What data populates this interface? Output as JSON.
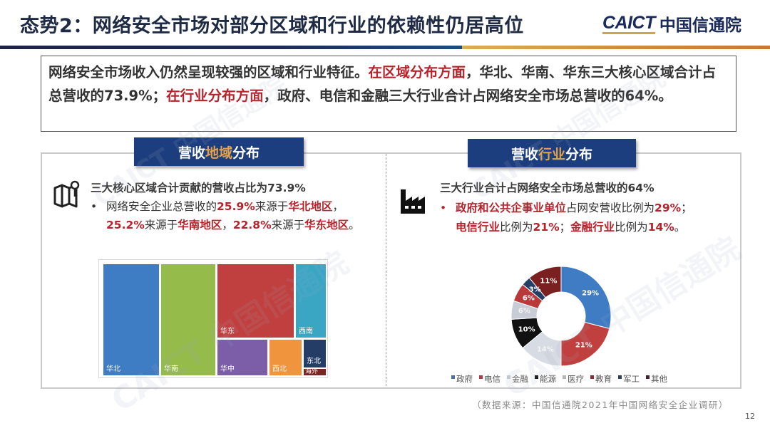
{
  "header": {
    "title": "态势2：网络安全市场对部分区域和行业的依赖性仍居高位",
    "logo_en": "CAICT",
    "logo_cn": "中国信通院"
  },
  "summary": {
    "segments": [
      {
        "text": "网络安全市场收入仍然呈现较强的区域和行业特征。",
        "style": "normal"
      },
      {
        "text": "在区域分布方面",
        "style": "red"
      },
      {
        "text": "，华北、华南、华东三大核心区域合计占总营收的73.9%；",
        "style": "normal"
      },
      {
        "text": "在行业分布方面",
        "style": "red"
      },
      {
        "text": "，政府、电信和金融三大行业合计占网络安全市场总营收的64%。",
        "style": "normal"
      }
    ]
  },
  "left_section": {
    "tag_prefix": "营收",
    "tag_highlight": "地域",
    "tag_suffix": "分布",
    "icon": "map-pin-icon",
    "subtitle": "三大核心区域合计贡献的营收占比为73.9%",
    "bullet_line1": [
      {
        "text": "网络安全企业总营收的",
        "style": "normal"
      },
      {
        "text": "25.9%",
        "style": "red"
      },
      {
        "text": "来源于",
        "style": "normal"
      },
      {
        "text": "华北地区",
        "style": "red"
      },
      {
        "text": "，",
        "style": "normal"
      }
    ],
    "bullet_line2": [
      {
        "text": "25.2%",
        "style": "red"
      },
      {
        "text": "来源于",
        "style": "normal"
      },
      {
        "text": "华南地区",
        "style": "red"
      },
      {
        "text": "，",
        "style": "normal"
      },
      {
        "text": "22.8%",
        "style": "red"
      },
      {
        "text": "来源于",
        "style": "normal"
      },
      {
        "text": "华东地区",
        "style": "red"
      },
      {
        "text": "。",
        "style": "normal"
      }
    ]
  },
  "right_section": {
    "tag_prefix": "营收",
    "tag_highlight": "行业",
    "tag_suffix": "分布",
    "icon": "factory-icon",
    "subtitle": "三大行业合计占网络安全市场总营收的64%",
    "bullet_line1": [
      {
        "text": "政府和公共企事业单位",
        "style": "red"
      },
      {
        "text": "占网安营收比例为",
        "style": "normal"
      },
      {
        "text": "29%",
        "style": "red"
      },
      {
        "text": "；",
        "style": "normal"
      }
    ],
    "bullet_line2": [
      {
        "text": "电信行业",
        "style": "red"
      },
      {
        "text": "比例为",
        "style": "normal"
      },
      {
        "text": "21%",
        "style": "red"
      },
      {
        "text": "；",
        "style": "normal"
      },
      {
        "text": "金融行业",
        "style": "red"
      },
      {
        "text": "比例为",
        "style": "normal"
      },
      {
        "text": "14%",
        "style": "red"
      },
      {
        "text": "。",
        "style": "normal"
      }
    ]
  },
  "chart_data": [
    {
      "type": "treemap",
      "title": "营收地域分布",
      "categories": [
        "华北",
        "华南",
        "华东",
        "华中",
        "西南",
        "西北",
        "东北",
        "海外"
      ],
      "values": [
        25.9,
        25.2,
        22.8,
        10.5,
        7.0,
        4.6,
        3.0,
        1.0
      ],
      "colors": [
        "#3e7cc4",
        "#95bb4b",
        "#c0403f",
        "#7b5ea7",
        "#3aa6c4",
        "#f0953e",
        "#233d66",
        "#7a2424"
      ]
    },
    {
      "type": "pie",
      "subtype": "donut",
      "title": "营收行业分布",
      "categories": [
        "政府",
        "电信",
        "金融",
        "能源",
        "医疗",
        "教育",
        "军工",
        "其他"
      ],
      "values": [
        29,
        21,
        14,
        10,
        6,
        6,
        3,
        11
      ],
      "labels": [
        "29%",
        "21%",
        "14%",
        "10%",
        "6%",
        "6%",
        "3%",
        "11%"
      ],
      "colors": [
        "#3f7cc4",
        "#c0403f",
        "#d7dbe3",
        "#111111",
        "#c8ccd6",
        "#b9383a",
        "#243f66",
        "#7a2020"
      ],
      "legend_position": "bottom"
    }
  ],
  "legend": [
    {
      "label": "政府",
      "color": "#4a6fa5"
    },
    {
      "label": "电信",
      "color": "#b03a48"
    },
    {
      "label": "金融",
      "color": "#c8ccd4"
    },
    {
      "label": "能源",
      "color": "#111111"
    },
    {
      "label": "医疗",
      "color": "#b8b8b8"
    },
    {
      "label": "教育",
      "color": "#8c2a3a"
    },
    {
      "label": "军工",
      "color": "#2f3e55"
    },
    {
      "label": "其他",
      "color": "#4a1f2a"
    }
  ],
  "footer": {
    "source": "（数据来源：中国信通院2021年中国网络安全企业调研）",
    "page_number": "12"
  },
  "watermark": "CAICT 中国信通院"
}
